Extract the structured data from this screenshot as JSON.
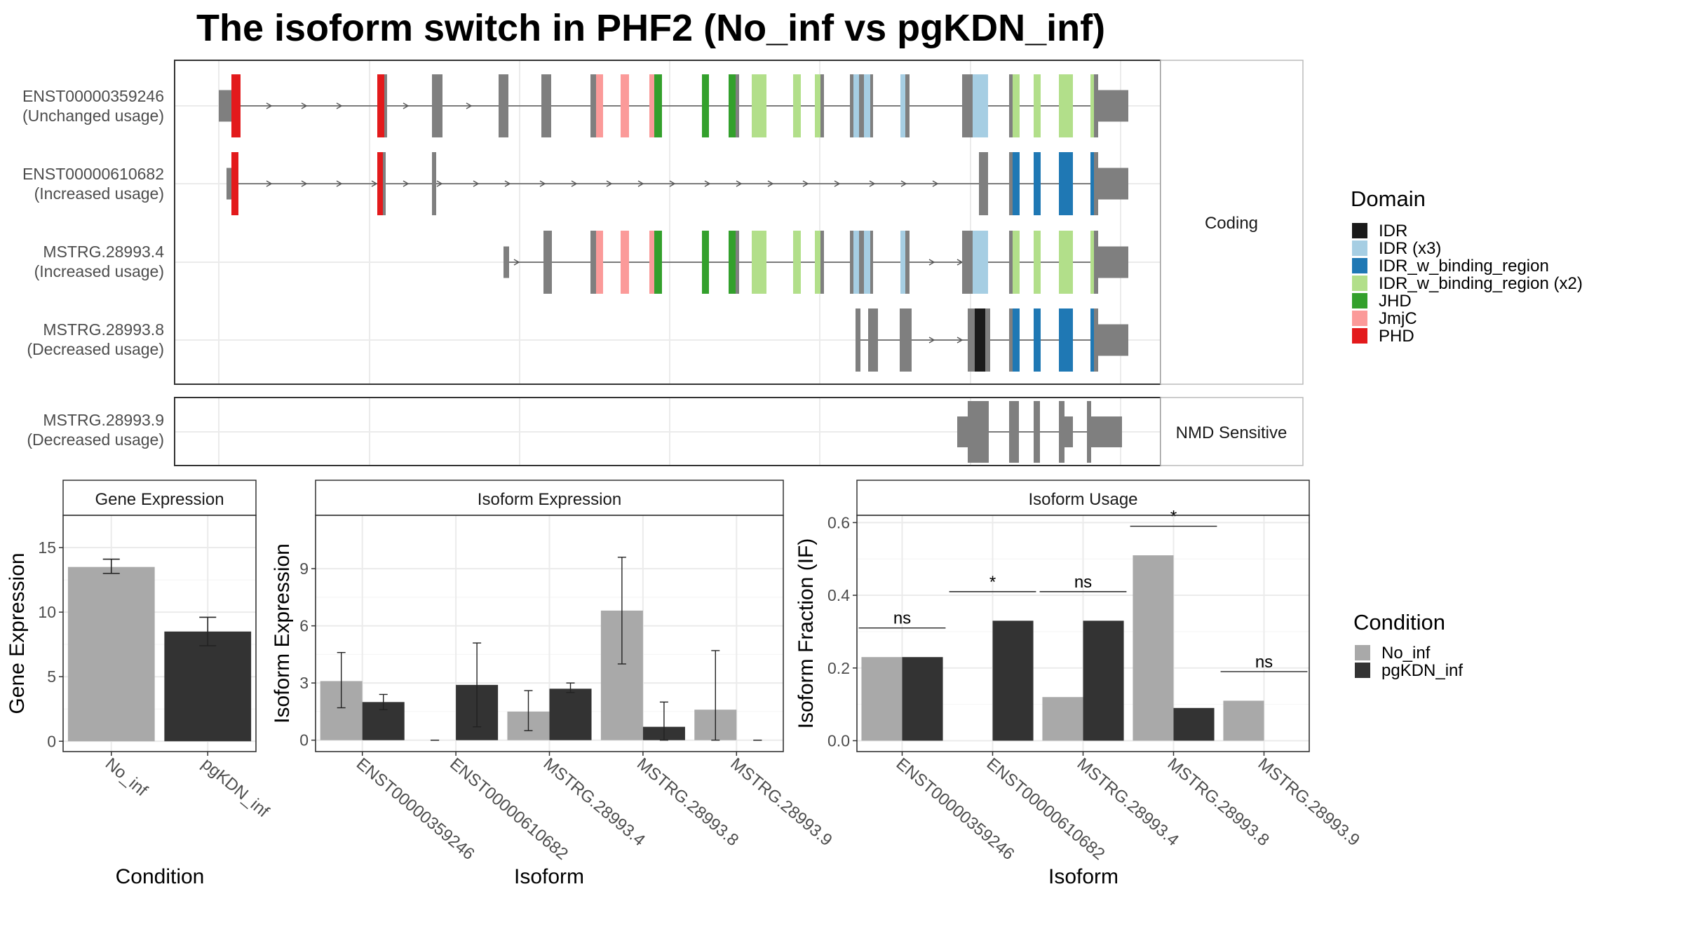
{
  "title": "The isoform switch in PHF2 (No_inf vs pgKDN_inf)",
  "colors": {
    "IDR": "#1a1a1a",
    "IDR (x3)": "#a6cee3",
    "IDR_w_binding_region": "#1f78b4",
    "IDR_w_binding_region (x2)": "#b2df8a",
    "JHD": "#33a02c",
    "JmjC": "#fb9a99",
    "PHD": "#e31a1c",
    "exon": "#7f7f7f",
    "No_inf": "#a9a9a9",
    "pgKDN_inf": "#333333"
  },
  "structure": {
    "groups": [
      "Coding",
      "NMD Sensitive"
    ],
    "isoforms": [
      {
        "id": "ENST00000359246",
        "usage": "(Unchanged usage)",
        "group": "Coding"
      },
      {
        "id": "ENST00000610682",
        "usage": "(Increased usage)",
        "group": "Coding"
      },
      {
        "id": "MSTRG.28993.4",
        "usage": "(Increased usage)",
        "group": "Coding"
      },
      {
        "id": "MSTRG.28993.8",
        "usage": "(Decreased usage)",
        "group": "Coding"
      },
      {
        "id": "MSTRG.28993.9",
        "usage": "(Decreased usage)",
        "group": "NMD Sensitive"
      }
    ]
  },
  "domain_legend": {
    "title": "Domain",
    "items": [
      "IDR",
      "IDR (x3)",
      "IDR_w_binding_region",
      "IDR_w_binding_region (x2)",
      "JHD",
      "JmjC",
      "PHD"
    ]
  },
  "condition_legend": {
    "title": "Condition",
    "items": [
      "No_inf",
      "pgKDN_inf"
    ]
  },
  "chart_data": [
    {
      "type": "bar",
      "title": "Gene Expression",
      "xlabel": "Condition",
      "ylabel": "Gene Expression",
      "categories": [
        "No_inf",
        "pgKDN_inf"
      ],
      "values": [
        13.5,
        8.5
      ],
      "errors": [
        [
          13.0,
          14.1
        ],
        [
          7.4,
          9.6
        ]
      ],
      "ylim": [
        -0.8,
        17.5
      ],
      "yticks": [
        0,
        5,
        10,
        15
      ]
    },
    {
      "type": "bar",
      "title": "Isoform Expression",
      "xlabel": "Isoform",
      "ylabel": "Isoform Expression",
      "categories": [
        "ENST00000359246",
        "ENST00000610682",
        "MSTRG.28993.4",
        "MSTRG.28993.8",
        "MSTRG.28993.9"
      ],
      "series": [
        {
          "name": "No_inf",
          "values": [
            3.1,
            0,
            1.5,
            6.8,
            1.6
          ],
          "errors": [
            [
              1.7,
              4.6
            ],
            [
              0,
              0
            ],
            [
              0.5,
              2.6
            ],
            [
              4.0,
              9.6
            ],
            [
              0,
              4.7
            ]
          ]
        },
        {
          "name": "pgKDN_inf",
          "values": [
            2.0,
            2.9,
            2.7,
            0.7,
            0
          ],
          "errors": [
            [
              1.6,
              2.4
            ],
            [
              0.7,
              5.1
            ],
            [
              2.5,
              3.0
            ],
            [
              0,
              2.0
            ],
            [
              0,
              0
            ]
          ]
        }
      ],
      "ylim": [
        -0.6,
        11.8
      ],
      "yticks": [
        0,
        3,
        6,
        9
      ]
    },
    {
      "type": "bar",
      "title": "Isoform Usage",
      "xlabel": "Isoform",
      "ylabel": "Isoform Fraction (IF)",
      "categories": [
        "ENST00000359246",
        "ENST00000610682",
        "MSTRG.28993.4",
        "MSTRG.28993.8",
        "MSTRG.28993.9"
      ],
      "series": [
        {
          "name": "No_inf",
          "values": [
            0.23,
            0,
            0.12,
            0.51,
            0.11
          ]
        },
        {
          "name": "pgKDN_inf",
          "values": [
            0.23,
            0.33,
            0.33,
            0.09,
            0
          ]
        }
      ],
      "significance": [
        "ns",
        "*",
        "ns",
        "*",
        "ns"
      ],
      "ylim": [
        -0.03,
        0.62
      ],
      "yticks": [
        0.0,
        0.2,
        0.4,
        0.6
      ]
    }
  ]
}
